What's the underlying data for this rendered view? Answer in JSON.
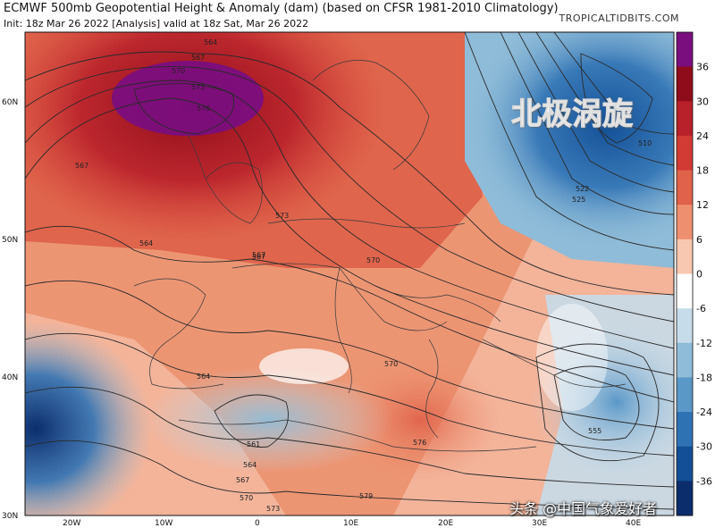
{
  "header": {
    "title": "ECMWF 500mb Geopotential Height & Anomaly (dam) (based on CFSR 1981-2010 Climatology)",
    "subtitle": "Init: 18z Mar 26 2022   [Analysis]   valid at 18z Sat, Mar 26 2022",
    "credit": "TROPICALTIDBITS.COM"
  },
  "overlay_title": "北极涡旋",
  "watermark": "头条 @中国气象爱好者",
  "map": {
    "lat_labels": [
      "60N",
      "50N",
      "40N",
      "30N"
    ],
    "lon_labels": [
      "20W",
      "10W",
      "0",
      "10E",
      "20E",
      "30E",
      "40E"
    ],
    "height_contours": [
      "564",
      "567",
      "570",
      "573",
      "576",
      "567",
      "564",
      "573",
      "570",
      "567",
      "564",
      "561",
      "564",
      "567",
      "570",
      "573",
      "576",
      "570",
      "579",
      "555",
      "510",
      "522",
      "525",
      "567"
    ],
    "features": [
      {
        "name": "North Atlantic ridge center",
        "label": "576",
        "anomaly": "+36"
      },
      {
        "name": "Polar vortex lobe (Russia)",
        "label": "510",
        "anomaly": "-24"
      },
      {
        "name": "Eastern Mediterranean trough",
        "label": "555",
        "anomaly": "-18"
      },
      {
        "name": "Western Atlantic low (off Iberia)",
        "label": "",
        "anomaly": "-30"
      }
    ]
  },
  "colorbar": {
    "labels": [
      "36",
      "30",
      "24",
      "18",
      "12",
      "6",
      "0",
      "-6",
      "-12",
      "-18",
      "-24",
      "-30",
      "-36"
    ],
    "colors": [
      "#7a0e7e",
      "#8f0d1a",
      "#b8202a",
      "#d23a34",
      "#e0624a",
      "#ee9070",
      "#f8c8b0",
      "#ffffff",
      "#c6dcea",
      "#8fbcd8",
      "#5a98c8",
      "#2f72b4",
      "#134f96",
      "#0c2d6c"
    ]
  }
}
